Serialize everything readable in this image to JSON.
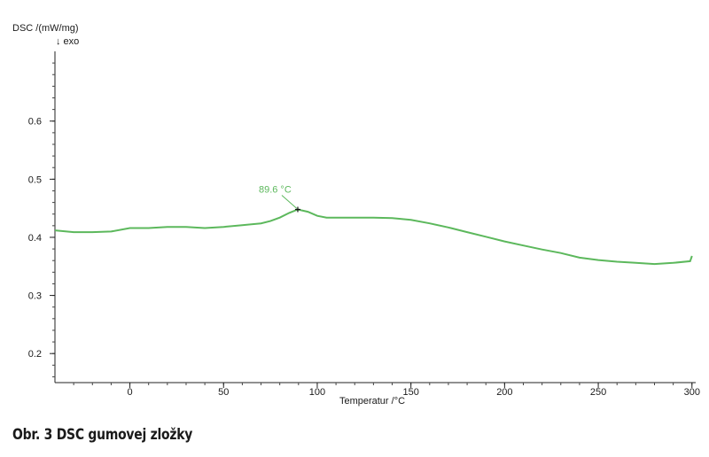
{
  "chart_data": {
    "type": "line",
    "ylabel": "DSC /(mW/mg)",
    "exo_label": "↓ exo",
    "xlabel": "Temperatur /°C",
    "xlim": [
      -40,
      302
    ],
    "ylim": [
      0.15,
      0.72
    ],
    "x_ticks": [
      0,
      50,
      100,
      150,
      200,
      250,
      300
    ],
    "y_ticks": [
      0.2,
      0.3,
      0.4,
      0.5,
      0.6
    ],
    "grid": false,
    "line_color": "#5cb85c",
    "series": [
      {
        "x": [
          -40,
          -30,
          -20,
          -10,
          0,
          10,
          20,
          30,
          40,
          50,
          60,
          70,
          75,
          80,
          85,
          89.6,
          95,
          100,
          105,
          110,
          120,
          130,
          140,
          150,
          160,
          170,
          180,
          190,
          200,
          210,
          220,
          230,
          240,
          250,
          260,
          270,
          280,
          290,
          299,
          300
        ],
        "y": [
          0.412,
          0.409,
          0.409,
          0.41,
          0.416,
          0.416,
          0.418,
          0.418,
          0.416,
          0.418,
          0.421,
          0.424,
          0.428,
          0.434,
          0.442,
          0.448,
          0.444,
          0.437,
          0.434,
          0.434,
          0.434,
          0.434,
          0.433,
          0.43,
          0.424,
          0.417,
          0.409,
          0.401,
          0.393,
          0.386,
          0.379,
          0.373,
          0.365,
          0.361,
          0.358,
          0.356,
          0.354,
          0.356,
          0.359,
          0.368
        ]
      }
    ],
    "annotations": [
      {
        "text": "89.6 °C",
        "x": 89.6,
        "y": 0.448
      }
    ]
  },
  "caption": "Obr. 3 DSC gumovej zložky"
}
